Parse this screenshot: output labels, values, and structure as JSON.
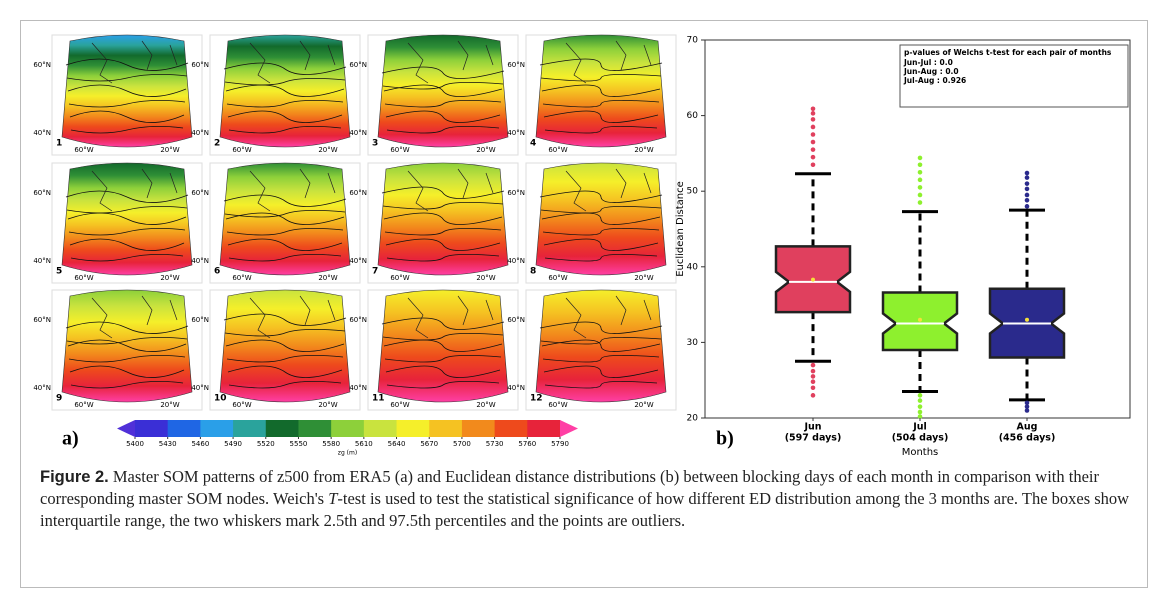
{
  "chart_data": [
    {
      "type": "colorbar",
      "label": "zg (m)",
      "ticks": [
        5400,
        5430,
        5460,
        5490,
        5520,
        5550,
        5580,
        5610,
        5640,
        5670,
        5700,
        5730,
        5760,
        5790
      ],
      "colors": [
        "#3a2fd6",
        "#1f66e4",
        "#2a9fe8",
        "#2aa39c",
        "#126a2c",
        "#2f8f36",
        "#8dd03a",
        "#c9e33e",
        "#f5ef2a",
        "#f5c222",
        "#f28a1c",
        "#ee4a1c",
        "#e7233a"
      ],
      "under_color": "#5030d8",
      "over_color": "#ff3fa5"
    },
    {
      "type": "box",
      "ylabel": "Euclidean Distance",
      "xlabel": "Months",
      "categories": [
        "Jun",
        "Jul",
        "Aug"
      ],
      "category_notes": [
        "(597 days)",
        "(504 days)",
        "(456 days)"
      ],
      "ylim": [
        20,
        70
      ],
      "yticks": [
        20,
        30,
        40,
        50,
        60,
        70
      ],
      "boxes": [
        {
          "color": "#e0405e",
          "whisker_low": 27.5,
          "q1": 34,
          "median": 38,
          "q3": 42.7,
          "whisker_high": 52.3,
          "mean": 38.3,
          "outliers": [
            53.5,
            54.5,
            55.5,
            56.5,
            57.5,
            58.5,
            59.5,
            60.3,
            60.9,
            27,
            26.2,
            25.5,
            24.8,
            24,
            23
          ]
        },
        {
          "color": "#8ef02e",
          "whisker_low": 23.5,
          "q1": 29,
          "median": 32.5,
          "q3": 36.6,
          "whisker_high": 47.3,
          "mean": 33,
          "outliers": [
            48.5,
            49.5,
            50.5,
            51.5,
            52.5,
            53.5,
            54.4,
            23,
            22.3,
            21.5,
            20.8,
            20.2
          ]
        },
        {
          "color": "#2a2a8c",
          "whisker_low": 22.4,
          "q1": 28,
          "median": 32.5,
          "q3": 37.1,
          "whisker_high": 47.5,
          "mean": 33,
          "outliers": [
            48,
            48.8,
            49.5,
            50.3,
            51,
            51.8,
            52.4,
            22,
            21.5,
            21
          ]
        }
      ],
      "legend_title": "p-values of Welchs t-test for each pair of months",
      "legend_lines": [
        "Jun-Jul : 0.0",
        "Jun-Aug : 0.0",
        "Jul-Aug : 0.926"
      ]
    }
  ],
  "maps": {
    "panels": [
      "1",
      "2",
      "3",
      "4",
      "5",
      "6",
      "7",
      "8",
      "9",
      "10",
      "11",
      "12"
    ],
    "lat_labels": [
      "60°N",
      "40°N"
    ],
    "lon_labels": [
      "60°W",
      "20°W"
    ]
  },
  "panel_labels": [
    "a)",
    "b)"
  ],
  "caption": {
    "label": "Figure 2.",
    "text_1": "Master SOM patterns of z500 from ERA5 (a) and Euclidean distance distributions (b) between blocking days of each month in comparison with their corresponding master SOM nodes. Weich's ",
    "italic": "T",
    "text_2": "-test is used to test the statistical significance of how different ED distribution among the 3 months are. The boxes show interquartile range, the two whiskers mark 2.5th and 97.5th percentiles and the points are outliers."
  }
}
